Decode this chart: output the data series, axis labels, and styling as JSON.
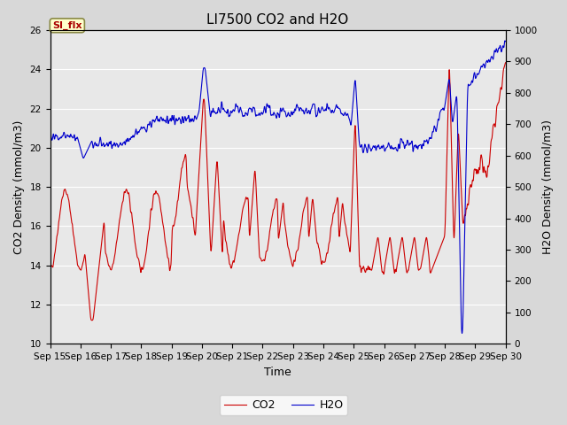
{
  "title": "LI7500 CO2 and H2O",
  "xlabel": "Time",
  "ylabel_left": "CO2 Density (mmol/m3)",
  "ylabel_right": "H2O Density (mmol/m3)",
  "ylim_left": [
    10,
    26
  ],
  "ylim_right": [
    0,
    1000
  ],
  "yticks_left": [
    10,
    12,
    14,
    16,
    18,
    20,
    22,
    24,
    26
  ],
  "yticks_right": [
    0,
    100,
    200,
    300,
    400,
    500,
    600,
    700,
    800,
    900,
    1000
  ],
  "co2_color": "#cc0000",
  "h2o_color": "#0000cc",
  "legend_co2": "CO2",
  "legend_h2o": "H2O",
  "annotation_text": "SI_flx",
  "background_color": "#d8d8d8",
  "plot_bg_color": "#e8e8e8",
  "grid_color": "#ffffff",
  "title_fontsize": 11,
  "label_fontsize": 9,
  "tick_fontsize": 7.5,
  "legend_fontsize": 9,
  "line_width": 0.8,
  "n_points": 2160,
  "seed": 42
}
